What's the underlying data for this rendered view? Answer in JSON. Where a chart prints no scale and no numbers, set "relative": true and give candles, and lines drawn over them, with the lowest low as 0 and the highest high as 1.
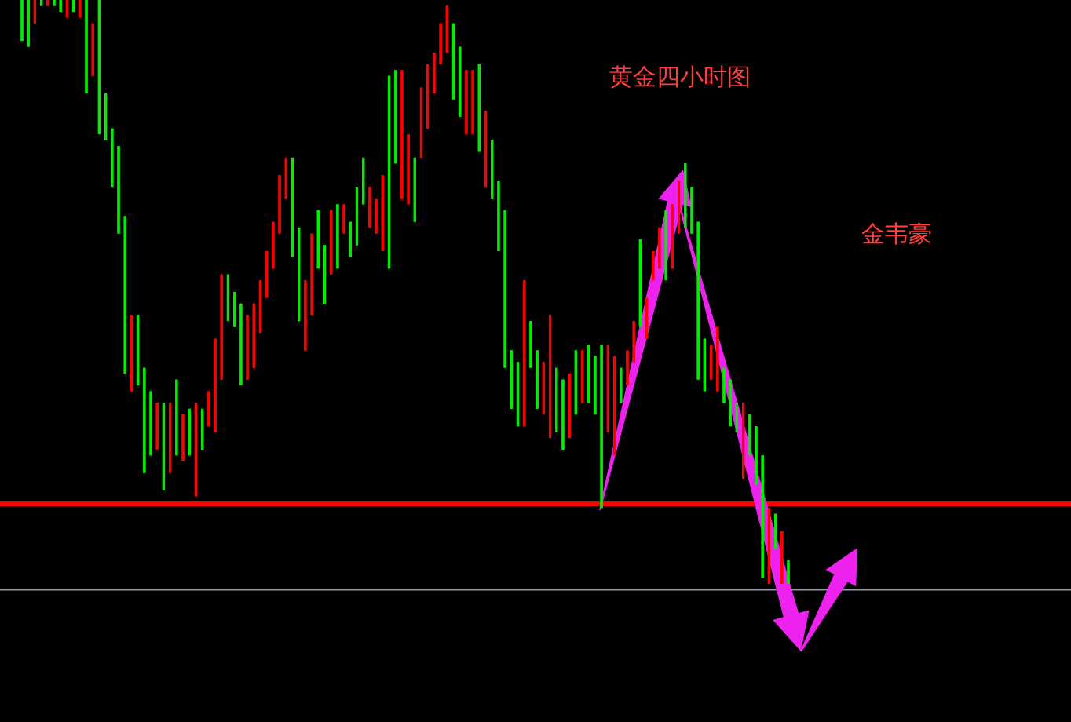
{
  "chart_data": {
    "type": "candlestick",
    "relative": true,
    "colors": [
      "#00ee00",
      "#00ee00",
      "#ff0000",
      "#00ee00",
      "#ff0000",
      "#00ee00",
      "#00ee00",
      "#ff0000",
      "#00ee00",
      "#ff0000",
      "#00ee00",
      "#ff0000",
      "#00ee00",
      "#00ee00",
      "#00ee00",
      "#00ee00",
      "#00ee00",
      "#ff0000",
      "#00ee00",
      "#00ee00",
      "#00ee00",
      "#ff0000",
      "#00ee00",
      "#ff0000",
      "#00ee00",
      "#ff0000",
      "#00ee00",
      "#ff0000",
      "#00ee00",
      "#ff0000",
      "#ff0000",
      "#ff0000",
      "#00ee00",
      "#00ee00",
      "#00ee00",
      "#ff0000",
      "#ff0000",
      "#ff0000",
      "#ff0000",
      "#ff0000",
      "#ff0000",
      "#ff0000",
      "#00ee00",
      "#00ee00",
      "#ff0000",
      "#ff0000",
      "#00ee00",
      "#00ee00",
      "#ff0000",
      "#00ee00",
      "#ff0000",
      "#00ee00",
      "#00ee00",
      "#00ee00",
      "#ff0000",
      "#ff0000",
      "#ff0000",
      "#00ee00",
      "#00ee00",
      "#ff0000",
      "#ff0000",
      "#00ee00",
      "#ff0000",
      "#ff0000",
      "#ff0000",
      "#ff0000",
      "#ff0000",
      "#00ee00",
      "#00ee00",
      "#ff0000",
      "#ff0000",
      "#00ee00",
      "#ff0000",
      "#00ee00",
      "#00ee00",
      "#00ee00",
      "#00ee00",
      "#00ee00",
      "#ff0000",
      "#00ee00",
      "#00ee00",
      "#ff0000",
      "#ff0000",
      "#00ee00",
      "#00ee00",
      "#ff0000",
      "#00ee00",
      "#ff0000",
      "#00ee00",
      "#00ee00",
      "#00ee00",
      "#ff0000",
      "#ff0000",
      "#00ee00",
      "#ff0000",
      "#ff0000",
      "#00ee00",
      "#ff0000",
      "#ff0000",
      "#ff0000",
      "#00ee00",
      "#ff0000",
      "#ff0000",
      "#00ee00",
      "#00ee00",
      "#00ee00",
      "#00ee00",
      "#ff0000",
      "#ff0000",
      "#00ee00",
      "#00ee00",
      "#00ee00",
      "#ff0000",
      "#00ee00",
      "#00ee00",
      "#00ee00",
      "#ff0000",
      "#00ee00",
      "#ff0000",
      "#00ee00"
    ],
    "categories": [
      null,
      null,
      null,
      null,
      null,
      null,
      null,
      null,
      null,
      null,
      null,
      null,
      null,
      null,
      null,
      null,
      null,
      null,
      null,
      null,
      null,
      null,
      null,
      null,
      null,
      null,
      null,
      null,
      null,
      null,
      null,
      null,
      null,
      null,
      null,
      null,
      null,
      null,
      null,
      null,
      null,
      null,
      null,
      null,
      null,
      null,
      null,
      null,
      null,
      null,
      null,
      null,
      null,
      null,
      null,
      null,
      null,
      null,
      null,
      null,
      null,
      null,
      null,
      null,
      null,
      null,
      null,
      null,
      null,
      null,
      null,
      null,
      null,
      null,
      null,
      null,
      null,
      null,
      null,
      null,
      null,
      null,
      null,
      null,
      null,
      null,
      null,
      null,
      null,
      null,
      null,
      null,
      null,
      null,
      null,
      null,
      null,
      null,
      null,
      null,
      null,
      null,
      null,
      null,
      null,
      null,
      null,
      null,
      null,
      null,
      null,
      null,
      null,
      null,
      null,
      null,
      null,
      null,
      null,
      null
    ],
    "ohlc": [
      [
        0.93,
        1,
        0.93,
        1
      ],
      [
        0.92,
        1,
        0.92,
        1
      ],
      [
        1,
        1,
        0.96,
        0.96
      ],
      [
        0.99,
        1,
        0.99,
        1
      ],
      [
        1,
        1,
        0.99,
        0.99
      ],
      [
        0.99,
        1,
        0.99,
        1
      ],
      [
        0.98,
        1,
        0.98,
        1
      ],
      [
        1,
        1,
        0.97,
        0.97
      ],
      [
        0.98,
        1,
        0.98,
        1
      ],
      [
        1,
        1,
        0.97,
        0.97
      ],
      [
        0.84,
        1,
        0.84,
        1
      ],
      [
        0.96,
        0.96,
        0.87,
        0.87
      ],
      [
        0.77,
        1,
        0.77,
        1
      ],
      [
        0.76,
        0.84,
        0.76,
        0.84
      ],
      [
        0.68,
        0.78,
        0.68,
        0.78
      ],
      [
        0.6,
        0.75,
        0.6,
        0.75
      ],
      [
        0.36,
        0.63,
        0.36,
        0.63
      ],
      [
        0.46,
        0.46,
        0.33,
        0.33
      ],
      [
        0.34,
        0.46,
        0.34,
        0.46
      ],
      [
        0.19,
        0.37,
        0.19,
        0.37
      ],
      [
        0.22,
        0.33,
        0.22,
        0.33
      ],
      [
        0.31,
        0.31,
        0.23,
        0.23
      ],
      [
        0.16,
        0.31,
        0.16,
        0.31
      ],
      [
        0.31,
        0.31,
        0.19,
        0.19
      ],
      [
        0.22,
        0.35,
        0.22,
        0.35
      ],
      [
        0.29,
        0.29,
        0.21,
        0.21
      ],
      [
        0.22,
        0.3,
        0.22,
        0.3
      ],
      [
        0.31,
        0.31,
        0.15,
        0.15
      ],
      [
        0.23,
        0.3,
        0.23,
        0.3
      ],
      [
        0.33,
        0.33,
        0.27,
        0.27
      ],
      [
        0.42,
        0.42,
        0.26,
        0.26
      ],
      [
        0.53,
        0.53,
        0.35,
        0.35
      ],
      [
        0.45,
        0.53,
        0.45,
        0.53
      ],
      [
        0.44,
        0.5,
        0.44,
        0.5
      ],
      [
        0.34,
        0.48,
        0.34,
        0.48
      ],
      [
        0.46,
        0.46,
        0.35,
        0.35
      ],
      [
        0.48,
        0.48,
        0.37,
        0.37
      ],
      [
        0.52,
        0.52,
        0.43,
        0.43
      ],
      [
        0.57,
        0.57,
        0.49,
        0.49
      ],
      [
        0.62,
        0.62,
        0.54,
        0.54
      ],
      [
        0.7,
        0.7,
        0.6,
        0.6
      ],
      [
        0.73,
        0.73,
        0.66,
        0.66
      ],
      [
        0.56,
        0.73,
        0.56,
        0.73
      ],
      [
        0.45,
        0.61,
        0.45,
        0.61
      ],
      [
        0.52,
        0.52,
        0.4,
        0.4
      ],
      [
        0.6,
        0.6,
        0.46,
        0.46
      ],
      [
        0.54,
        0.64,
        0.54,
        0.64
      ],
      [
        0.48,
        0.58,
        0.48,
        0.58
      ],
      [
        0.64,
        0.64,
        0.53,
        0.53
      ],
      [
        0.54,
        0.65,
        0.54,
        0.65
      ],
      [
        0.65,
        0.65,
        0.6,
        0.6
      ],
      [
        0.56,
        0.62,
        0.56,
        0.62
      ],
      [
        0.58,
        0.68,
        0.58,
        0.68
      ],
      [
        0.65,
        0.73,
        0.65,
        0.73
      ],
      [
        0.68,
        0.68,
        0.61,
        0.61
      ],
      [
        0.66,
        0.66,
        0.6,
        0.6
      ],
      [
        0.7,
        0.7,
        0.57,
        0.57
      ],
      [
        0.54,
        0.87,
        0.54,
        0.87
      ],
      [
        0.72,
        0.88,
        0.72,
        0.88
      ],
      [
        0.88,
        0.88,
        0.66,
        0.66
      ],
      [
        0.77,
        0.77,
        0.65,
        0.65
      ],
      [
        0.62,
        0.73,
        0.62,
        0.73
      ],
      [
        0.85,
        0.85,
        0.73,
        0.73
      ],
      [
        0.89,
        0.89,
        0.78,
        0.78
      ],
      [
        0.91,
        0.91,
        0.84,
        0.84
      ],
      [
        0.96,
        0.96,
        0.89,
        0.89
      ],
      [
        0.99,
        0.99,
        0.91,
        0.91
      ],
      [
        0.83,
        0.96,
        0.83,
        0.96
      ],
      [
        0.8,
        0.92,
        0.8,
        0.92
      ],
      [
        0.88,
        0.88,
        0.77,
        0.77
      ],
      [
        0.88,
        0.88,
        0.77,
        0.77
      ],
      [
        0.74,
        0.89,
        0.74,
        0.89
      ],
      [
        0.81,
        0.81,
        0.68,
        0.68
      ],
      [
        0.66,
        0.76,
        0.66,
        0.76
      ],
      [
        0.57,
        0.69,
        0.57,
        0.69
      ],
      [
        0.37,
        0.64,
        0.37,
        0.64
      ],
      [
        0.3,
        0.4,
        0.3,
        0.4
      ],
      [
        0.27,
        0.38,
        0.27,
        0.38
      ],
      [
        0.52,
        0.52,
        0.27,
        0.27
      ],
      [
        0.37,
        0.45,
        0.37,
        0.45
      ],
      [
        0.3,
        0.4,
        0.3,
        0.4
      ],
      [
        0.38,
        0.38,
        0.29,
        0.29
      ],
      [
        0.46,
        0.46,
        0.25,
        0.25
      ],
      [
        0.26,
        0.37,
        0.26,
        0.37
      ],
      [
        0.23,
        0.35,
        0.23,
        0.35
      ],
      [
        0.36,
        0.36,
        0.25,
        0.25
      ],
      [
        0.29,
        0.4,
        0.29,
        0.4
      ],
      [
        0.4,
        0.4,
        0.31,
        0.31
      ],
      [
        0.31,
        0.41,
        0.31,
        0.41
      ],
      [
        0.29,
        0.39,
        0.29,
        0.39
      ],
      [
        0.13,
        0.41,
        0.13,
        0.41
      ],
      [
        0.41,
        0.41,
        0.26,
        0.26
      ],
      [
        0.39,
        0.39,
        0.22,
        0.22
      ],
      [
        0.31,
        0.37,
        0.31,
        0.37
      ],
      [
        0.4,
        0.4,
        0.34,
        0.34
      ],
      [
        0.45,
        0.45,
        0.38,
        0.38
      ],
      [
        0.44,
        0.59,
        0.44,
        0.59
      ],
      [
        0.49,
        0.49,
        0.42,
        0.42
      ],
      [
        0.57,
        0.57,
        0.52,
        0.52
      ],
      [
        0.61,
        0.61,
        0.54,
        0.54
      ],
      [
        0.52,
        0.64,
        0.52,
        0.64
      ],
      [
        0.65,
        0.65,
        0.54,
        0.54
      ],
      [
        0.69,
        0.69,
        0.6,
        0.6
      ],
      [
        0.61,
        0.72,
        0.61,
        0.72
      ],
      [
        0.6,
        0.68,
        0.6,
        0.68
      ],
      [
        0.35,
        0.62,
        0.35,
        0.62
      ],
      [
        0.33,
        0.42,
        0.33,
        0.42
      ],
      [
        0.41,
        0.41,
        0.35,
        0.35
      ],
      [
        0.44,
        0.44,
        0.33,
        0.33
      ],
      [
        0.31,
        0.37,
        0.31,
        0.37
      ],
      [
        0.27,
        0.35,
        0.27,
        0.35
      ],
      [
        0.26,
        0.31,
        0.26,
        0.31
      ],
      [
        0.31,
        0.31,
        0.18,
        0.18
      ],
      [
        0.22,
        0.29,
        0.22,
        0.29
      ],
      [
        0.17,
        0.27,
        0.17,
        0.27
      ],
      [
        0.01,
        0.22,
        0.01,
        0.22
      ],
      [
        0.13,
        0.13,
        0,
        0
      ],
      [
        0.06,
        0.12,
        0.06,
        0.12
      ],
      [
        0.09,
        0.09,
        0,
        0
      ],
      [
        0,
        0.04,
        0,
        0.04
      ]
    ],
    "ref_lines": [
      {
        "axis": "y",
        "value": 0.137,
        "color": "#ff0000"
      },
      {
        "axis": "y",
        "value": -0.01,
        "color": "#8899aa"
      }
    ],
    "annotations": [
      "黄金四小时图",
      "金韦豪"
    ]
  }
}
